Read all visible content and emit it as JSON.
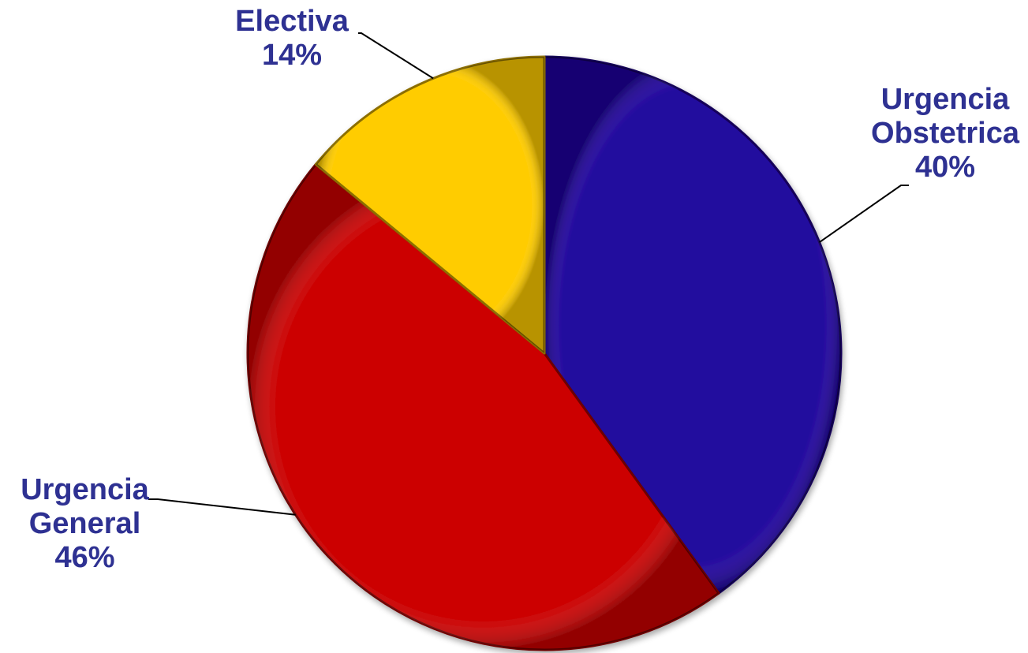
{
  "chart_data": {
    "type": "pie",
    "title": "",
    "label_color": "#2E3192",
    "slices": [
      {
        "label_lines": [
          "Urgencia",
          "Obstetrica"
        ],
        "value": 40,
        "value_label": "40%",
        "color": "#22079E",
        "edge_color": "#120458"
      },
      {
        "label_lines": [
          "Urgencia",
          "General"
        ],
        "value": 46,
        "value_label": "46%",
        "color": "#CC0505",
        "edge_color": "#6E0202"
      },
      {
        "label_lines": [
          "Electiva"
        ],
        "value": 14,
        "value_label": "14%",
        "color": "#FFCC00",
        "edge_color": "#8C6E00"
      }
    ],
    "start_angle_deg": 0,
    "direction": "clockwise",
    "legend": "none",
    "label_style": "outside-with-leader-lines"
  }
}
